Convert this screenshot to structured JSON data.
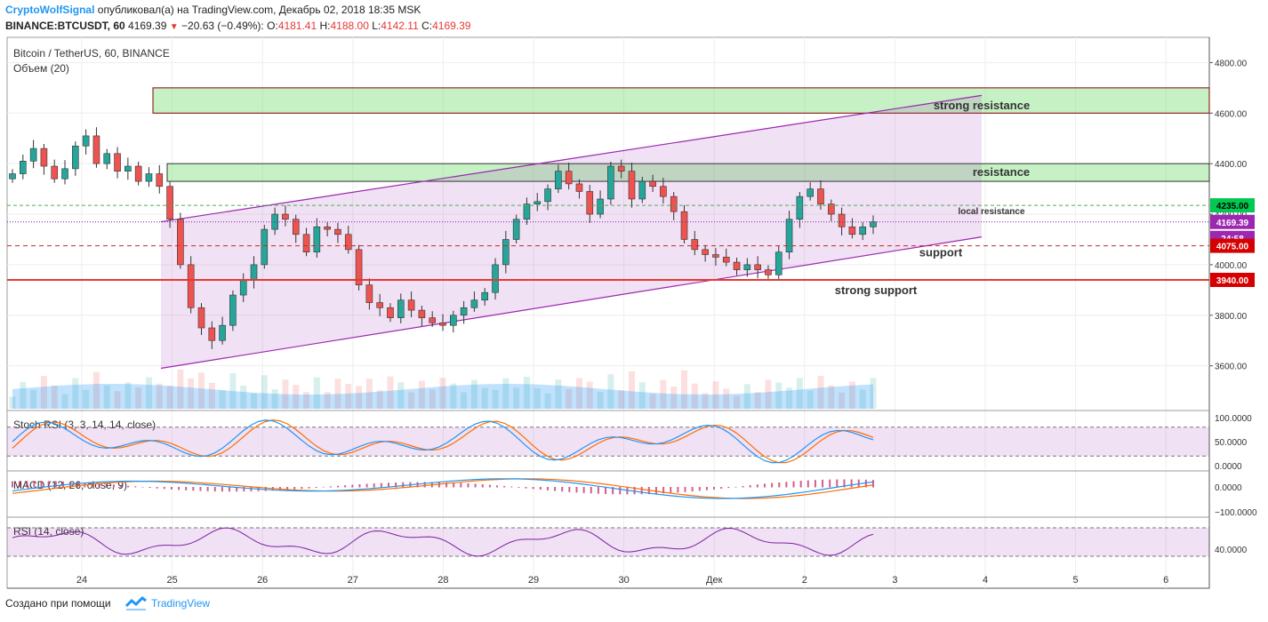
{
  "header": {
    "author": "CryptoWolfSignal",
    "published": "опубликовал(а) на TradingView.com, Декабрь 02, 2018 18:35 MSK",
    "symbol": "BINANCE:BTCUSDT, 60",
    "last": "4169.39",
    "change": "−20.63 (−0.49%):",
    "o_label": "O:",
    "o": "4181.41",
    "h_label": "H:",
    "h": "4188.00",
    "l_label": "L:",
    "l": "4142.11",
    "c_label": "C:",
    "c": "4169.39"
  },
  "footer": {
    "made_with": "Создано при помощи",
    "brand": "TradingView"
  },
  "colors": {
    "bull": "#26a69a",
    "bear": "#ef5350",
    "channel": "#9c27b0",
    "zone": "#7fe07f",
    "stoch_k": "#2196f3",
    "stoch_d": "#ff6d00"
  },
  "chart_data": {
    "type": "candlestick",
    "title": "Bitcoin / TetherUS, 60, BINANCE",
    "volume_label": "Объем (20)",
    "x_ticks": [
      "24",
      "25",
      "26",
      "27",
      "28",
      "29",
      "30",
      "Дек",
      "2",
      "3",
      "4",
      "5",
      "6"
    ],
    "ylim": [
      3430,
      4900
    ],
    "y_ticks": [
      "4800.00",
      "4600.00",
      "4400.00",
      "4200.00",
      "4000.00",
      "3800.00",
      "3600.00"
    ],
    "candles_close": [
      4360,
      4410,
      4460,
      4390,
      4340,
      4380,
      4470,
      4510,
      4400,
      4440,
      4370,
      4390,
      4330,
      4360,
      4310,
      4180,
      4000,
      3830,
      3750,
      3700,
      3760,
      3880,
      3940,
      4000,
      4140,
      4200,
      4180,
      4120,
      4050,
      4150,
      4140,
      4120,
      4060,
      3920,
      3850,
      3830,
      3790,
      3860,
      3820,
      3790,
      3770,
      3760,
      3800,
      3830,
      3860,
      3890,
      4000,
      4100,
      4180,
      4240,
      4250,
      4300,
      4370,
      4320,
      4290,
      4200,
      4260,
      4390,
      4370,
      4260,
      4330,
      4310,
      4270,
      4210,
      4100,
      4060,
      4040,
      4030,
      4010,
      3980,
      4000,
      3980,
      3960,
      4050,
      4180,
      4270,
      4300,
      4240,
      4200,
      4150,
      4120,
      4150,
      4169.39
    ],
    "levels": [
      {
        "label": "strong resistance",
        "value": 4650
      },
      {
        "label": "resistance",
        "value": 4365
      },
      {
        "label": "local resistance",
        "value": 4235.0,
        "price_tag": "4235.00"
      },
      {
        "label": "support",
        "value": 4075.0,
        "price_tag": "4075.00"
      },
      {
        "label": "strong support",
        "value": 3940.0,
        "price_tag": "3940.00"
      }
    ],
    "last_price_tag": "4169.39",
    "countdown_tag": "24:58",
    "channel": {
      "upper": [
        4170,
        4670
      ],
      "lower": [
        3590,
        4110
      ]
    },
    "indicators": [
      {
        "name": "Stoch RSI (3, 3, 14, 14, close)",
        "ticks": [
          "100.0000",
          "50.0000",
          "0.0000"
        ]
      },
      {
        "name": "MACD (12, 26, close, 9)",
        "ticks": [
          "0.0000",
          "−100.0000"
        ]
      },
      {
        "name": "RSI (14, close)",
        "ticks": [
          "40.0000"
        ]
      }
    ]
  }
}
